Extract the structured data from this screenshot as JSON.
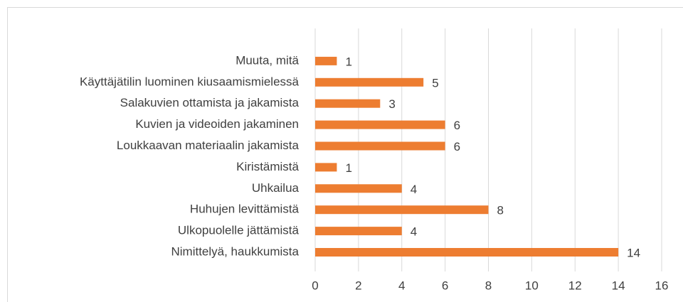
{
  "chart_data": {
    "type": "bar",
    "orientation": "horizontal",
    "categories": [
      "Nimittelyä, haukkumista",
      "Ulkopuolelle jättämistä",
      "Huhujen levittämistä",
      "Uhkailua",
      "Kiristämistä",
      "Loukkaavan materiaalin jakamista",
      "Kuvien ja videoiden jakaminen",
      "Salakuvien ottamista ja jakamista",
      "Käyttäjätilin luominen kiusaamismielessä",
      "Muuta, mitä"
    ],
    "values": [
      14,
      4,
      8,
      4,
      1,
      6,
      6,
      3,
      5,
      1
    ],
    "color": "#ed7d31",
    "xlim": [
      0,
      16
    ],
    "xticks": [
      0,
      2,
      4,
      6,
      8,
      10,
      12,
      14,
      16
    ],
    "grid": true
  }
}
